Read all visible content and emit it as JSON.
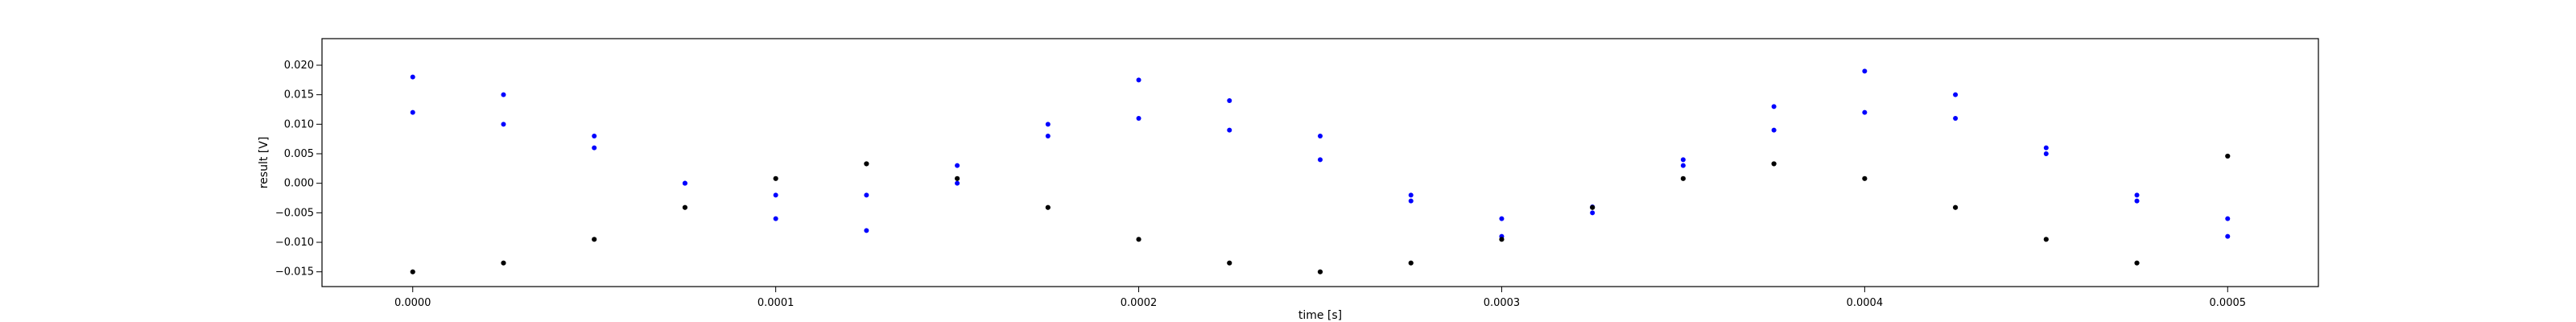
{
  "chart_data": {
    "type": "scatter",
    "title": "",
    "xlabel": "time [s]",
    "ylabel": "result [V]",
    "xlim": [
      -2.5e-05,
      0.000525
    ],
    "ylim": [
      -0.0175,
      0.0245
    ],
    "x_ticks": [
      0.0,
      0.0001,
      0.0002,
      0.0003,
      0.0004,
      0.0005
    ],
    "x_tick_labels": [
      "0.0000",
      "0.0001",
      "0.0002",
      "0.0003",
      "0.0004",
      "0.0005"
    ],
    "y_ticks": [
      -0.015,
      -0.01,
      -0.005,
      0.0,
      0.005,
      0.01,
      0.015,
      0.02
    ],
    "y_tick_labels": [
      "−0.015",
      "−0.010",
      "−0.005",
      "0.000",
      "0.005",
      "0.010",
      "0.015",
      "0.020"
    ],
    "grid": false,
    "legend": "none",
    "series": [
      {
        "color": "#0000ff",
        "marker": "dot",
        "x": [
          0.0,
          2.5e-05,
          5e-05,
          7.5e-05,
          0.0001,
          0.000125,
          0.00015,
          0.000175,
          0.0002,
          0.000225,
          0.00025,
          0.000275,
          0.0003,
          0.000325,
          0.00035,
          0.000375,
          0.0004,
          0.000425,
          0.00045,
          0.000475,
          0.0005
        ],
        "y": [
          0.018,
          0.015,
          0.008,
          0.0,
          -0.006,
          -0.008,
          0.0,
          0.01,
          0.0175,
          0.014,
          0.008,
          -0.003,
          -0.009,
          -0.005,
          0.004,
          0.013,
          0.019,
          0.015,
          0.006,
          -0.003,
          -0.006
        ]
      },
      {
        "color": "#0000ff",
        "marker": "dot",
        "x": [
          0.0,
          2.5e-05,
          5e-05,
          7.5e-05,
          0.0001,
          0.000125,
          0.00015,
          0.000175,
          0.0002,
          0.000225,
          0.00025,
          0.000275,
          0.0003,
          0.000325,
          0.00035,
          0.000375,
          0.0004,
          0.000425,
          0.00045,
          0.000475,
          0.0005
        ],
        "y": [
          0.012,
          0.01,
          0.006,
          0.0,
          -0.002,
          -0.002,
          0.003,
          0.008,
          0.011,
          0.009,
          0.004,
          -0.002,
          -0.006,
          -0.004,
          0.003,
          0.009,
          0.012,
          0.011,
          0.005,
          -0.002,
          -0.009
        ]
      },
      {
        "color": "#000000",
        "marker": "dot",
        "x": [
          0.0,
          2.5e-05,
          5e-05,
          7.5e-05,
          0.0001,
          0.000125,
          0.00015,
          0.000175,
          0.0002,
          0.000225,
          0.00025,
          0.000275,
          0.0003,
          0.000325,
          0.00035,
          0.000375,
          0.0004,
          0.000425,
          0.00045,
          0.000475,
          0.0005
        ],
        "y": [
          -0.015,
          -0.0135,
          -0.0095,
          -0.0041,
          0.0008,
          0.0033,
          0.0008,
          -0.0041,
          -0.0095,
          -0.0135,
          -0.015,
          -0.0135,
          -0.0095,
          -0.0041,
          0.0008,
          0.0033,
          0.0008,
          -0.0041,
          -0.0095,
          -0.0135,
          0.0046
        ]
      }
    ]
  }
}
